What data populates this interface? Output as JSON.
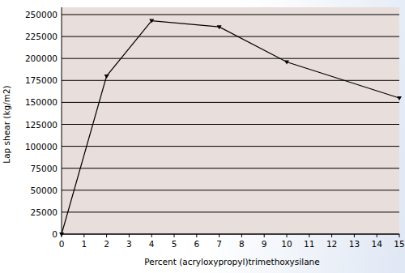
{
  "chart_data": {
    "type": "line",
    "x_label": "Percent (acryloxypropyl)trimethoxysilane",
    "y_label": "Lap shear (kg/m2)",
    "x": [
      0,
      2,
      4,
      7,
      10,
      15
    ],
    "values": [
      0,
      180000,
      243000,
      236000,
      196000,
      155000
    ],
    "color": "#000000",
    "marker": "triangle",
    "xlim": [
      0,
      15
    ],
    "xticks": [
      0,
      1,
      2,
      3,
      4,
      5,
      6,
      7,
      8,
      9,
      10,
      11,
      12,
      13,
      14,
      15
    ],
    "ylim": [
      0,
      250000
    ],
    "yticks": [
      0,
      25000,
      50000,
      75000,
      100000,
      125000,
      150000,
      175000,
      200000,
      225000,
      250000
    ],
    "grid": true
  }
}
